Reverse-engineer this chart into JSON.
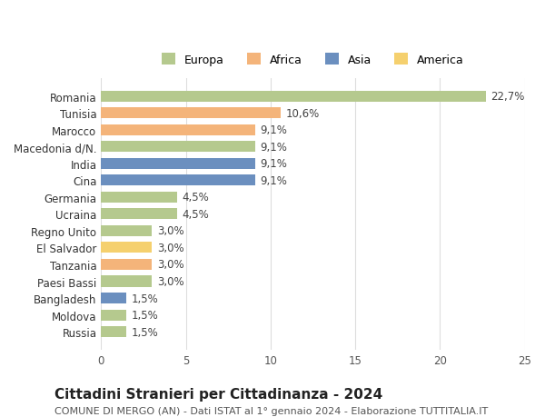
{
  "countries": [
    "Romania",
    "Tunisia",
    "Marocco",
    "Macedonia d/N.",
    "India",
    "Cina",
    "Germania",
    "Ucraina",
    "Regno Unito",
    "El Salvador",
    "Tanzania",
    "Paesi Bassi",
    "Bangladesh",
    "Moldova",
    "Russia"
  ],
  "values": [
    22.7,
    10.6,
    9.1,
    9.1,
    9.1,
    9.1,
    4.5,
    4.5,
    3.0,
    3.0,
    3.0,
    3.0,
    1.5,
    1.5,
    1.5
  ],
  "labels": [
    "22,7%",
    "10,6%",
    "9,1%",
    "9,1%",
    "9,1%",
    "9,1%",
    "4,5%",
    "4,5%",
    "3,0%",
    "3,0%",
    "3,0%",
    "3,0%",
    "1,5%",
    "1,5%",
    "1,5%"
  ],
  "colors": [
    "#b5c98e",
    "#f4b47a",
    "#f4b47a",
    "#b5c98e",
    "#6b8fbf",
    "#6b8fbf",
    "#b5c98e",
    "#b5c98e",
    "#b5c98e",
    "#f5d06e",
    "#f4b47a",
    "#b5c98e",
    "#6b8fbf",
    "#b5c98e",
    "#b5c98e"
  ],
  "legend": [
    {
      "label": "Europa",
      "color": "#b5c98e"
    },
    {
      "label": "Africa",
      "color": "#f4b47a"
    },
    {
      "label": "Asia",
      "color": "#6b8fbf"
    },
    {
      "label": "America",
      "color": "#f5d06e"
    }
  ],
  "xlim": [
    0,
    25
  ],
  "xticks": [
    0,
    5,
    10,
    15,
    20,
    25
  ],
  "title": "Cittadini Stranieri per Cittadinanza - 2024",
  "subtitle": "COMUNE DI MERGO (AN) - Dati ISTAT al 1° gennaio 2024 - Elaborazione TUTTITALIA.IT",
  "background_color": "#ffffff",
  "grid_color": "#dddddd",
  "bar_height": 0.65,
  "label_fontsize": 8.5,
  "tick_fontsize": 8.5,
  "title_fontsize": 11,
  "subtitle_fontsize": 8
}
